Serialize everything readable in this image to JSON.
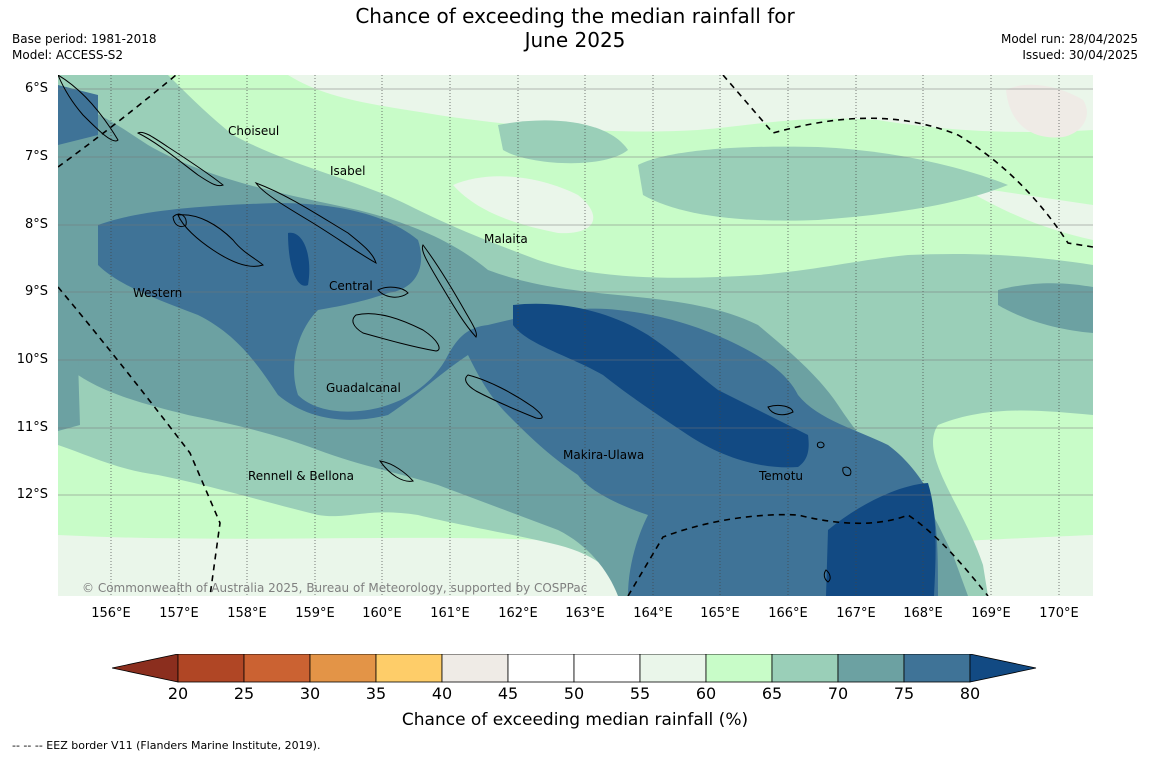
{
  "header": {
    "title_line1": "Chance of exceeding the median rainfall for",
    "title_line2": "June 2025",
    "base_period": "Base period: 1981-2018",
    "model": "Model: ACCESS-S2",
    "model_run": "Model run: 28/04/2025",
    "issued": "Issued: 30/04/2025"
  },
  "map": {
    "lat_labels": [
      "6°S",
      "7°S",
      "8°S",
      "9°S",
      "10°S",
      "11°S",
      "12°S"
    ],
    "lon_labels": [
      "156°E",
      "157°E",
      "158°E",
      "159°E",
      "160°E",
      "161°E",
      "162°E",
      "163°E",
      "164°E",
      "165°E",
      "166°E",
      "167°E",
      "168°E",
      "169°E",
      "170°E"
    ],
    "places": {
      "choiseul": "Choiseul",
      "isabel": "Isabel",
      "malaita": "Malaita",
      "western": "Western",
      "central": "Central",
      "guadalcanal": "Guadalcanal",
      "makira_ulawa": "Makira-Ulawa",
      "temotu": "Temotu",
      "rennell_bellona": "Rennell & Bellona"
    },
    "copyright": "© Commonwealth of Australia 2025, Bureau of Meteorology, supported by COSPPac"
  },
  "colorbar": {
    "ticks": [
      "20",
      "25",
      "30",
      "35",
      "40",
      "45",
      "50",
      "55",
      "60",
      "65",
      "70",
      "75",
      "80"
    ],
    "colors": {
      "below_20": "#8b2e1e",
      "b20_25": "#b04625",
      "b25_30": "#cb6232",
      "b30_35": "#e39447",
      "b35_40": "#fecd69",
      "b40_45": "#efebe6",
      "b45_50": "#ffffff",
      "b50_55": "#ffffff",
      "b55_60": "#eaf6ea",
      "b60_65": "#c8fcc8",
      "b65_70": "#9acfb8",
      "b70_75": "#6ca1a2",
      "b75_80": "#3f7397",
      "above_80": "#124a83"
    },
    "label": "Chance of exceeding median rainfall (%)"
  },
  "footer": {
    "legend": "--  --  -- EEZ border V11 (Flanders Marine Institute, 2019)."
  }
}
